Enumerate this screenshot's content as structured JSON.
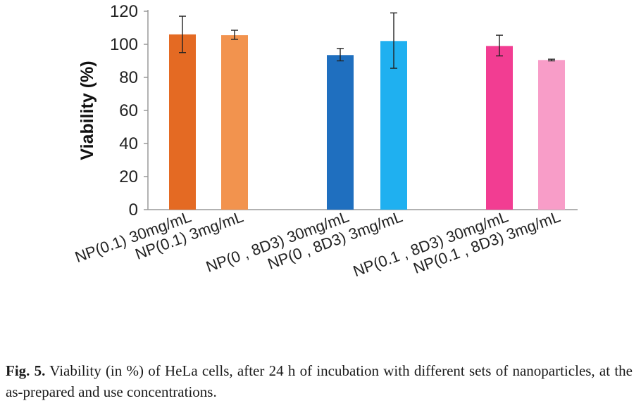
{
  "chart_data": {
    "type": "bar",
    "ylabel": "Viability (%)",
    "xlabel": "",
    "ylim": [
      0,
      120
    ],
    "yticks": [
      0,
      20,
      40,
      60,
      80,
      100,
      120
    ],
    "grid": false,
    "legend": "none",
    "groups": [
      {
        "bars": [
          {
            "label": "NP(0.1) 30mg/mL",
            "value": 106,
            "err_low": 95,
            "err_high": 117,
            "color": "#E46A23"
          },
          {
            "label": "NP(0.1) 3mg/mL",
            "value": 105.5,
            "err_low": 103,
            "err_high": 108.5,
            "color": "#F2934E"
          }
        ]
      },
      {
        "bars": [
          {
            "label": "NP(0 , 8D3) 30mg/mL",
            "value": 93.5,
            "err_low": 90,
            "err_high": 97.5,
            "color": "#1F6FBF"
          },
          {
            "label": "NP(0 , 8D3) 3mg/mL",
            "value": 102,
            "err_low": 85.5,
            "err_high": 119,
            "color": "#1FB0F0"
          }
        ]
      },
      {
        "bars": [
          {
            "label": "NP(0.1 , 8D3) 30mg/mL",
            "value": 99,
            "err_low": 93,
            "err_high": 105.5,
            "color": "#F23D92"
          },
          {
            "label": "NP(0.1 , 8D3) 3mg/mL",
            "value": 90.5,
            "err_low": 90,
            "err_high": 91,
            "color": "#F89DC8"
          }
        ]
      }
    ]
  },
  "caption": {
    "fig_label": "Fig. 5.",
    "text": " Viability (in %) of HeLa cells, after 24 h of incubation with different sets of nanoparticles, at the as-prepared and use concentrations."
  }
}
